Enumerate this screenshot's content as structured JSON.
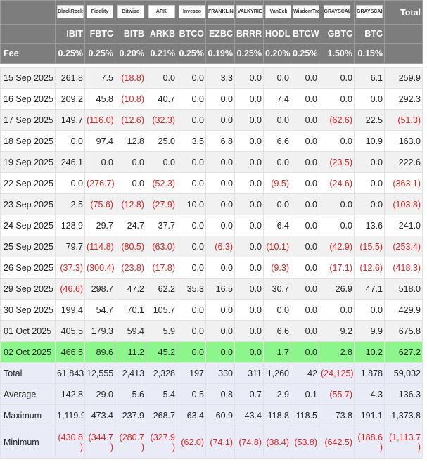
{
  "header": {
    "logos": [
      "BlackRock",
      "Fidelity",
      "Bitwise",
      "ARK",
      "Invesco",
      "FRANKLIN TEMPLETON",
      "VALKYRIE",
      "VanEck",
      "WisdomTree",
      "GRAYSCALE",
      "GRAYSCALE"
    ],
    "total_label": "Total",
    "tickers": [
      "IBIT",
      "FBTC",
      "BITB",
      "ARKB",
      "BTCO",
      "EZBC",
      "BRRR",
      "HODL",
      "BTCW",
      "GBTC",
      "BTC"
    ],
    "fee_label": "Fee",
    "fees": [
      "0.25%",
      "0.25%",
      "0.20%",
      "0.21%",
      "0.25%",
      "0.19%",
      "0.25%",
      "0.20%",
      "0.25%",
      "1.50%",
      "0.15%"
    ]
  },
  "table": {
    "rows": [
      [
        "15 Sep 2025",
        "261.8",
        "7.5",
        "(18.8)",
        "0.0",
        "0.0",
        "3.3",
        "0.0",
        "0.0",
        "0.0",
        "0.0",
        "6.1",
        "259.9"
      ],
      [
        "16 Sep 2025",
        "209.2",
        "45.8",
        "(10.8)",
        "40.7",
        "0.0",
        "0.0",
        "0.0",
        "7.4",
        "0.0",
        "0.0",
        "0.0",
        "292.3"
      ],
      [
        "17 Sep 2025",
        "149.7",
        "(116.0)",
        "(12.6)",
        "(32.3)",
        "0.0",
        "0.0",
        "0.0",
        "0.0",
        "0.0",
        "(62.6)",
        "22.5",
        "(51.3)"
      ],
      [
        "18 Sep 2025",
        "0.0",
        "97.4",
        "12.8",
        "25.0",
        "3.5",
        "6.8",
        "0.0",
        "6.6",
        "0.0",
        "0.0",
        "10.9",
        "163.0"
      ],
      [
        "19 Sep 2025",
        "246.1",
        "0.0",
        "0.0",
        "0.0",
        "0.0",
        "0.0",
        "0.0",
        "0.0",
        "0.0",
        "(23.5)",
        "0.0",
        "222.6"
      ],
      [
        "22 Sep 2025",
        "0.0",
        "(276.7)",
        "0.0",
        "(52.3)",
        "0.0",
        "0.0",
        "0.0",
        "(9.5)",
        "0.0",
        "(24.6)",
        "0.0",
        "(363.1)"
      ],
      [
        "23 Sep 2025",
        "2.5",
        "(75.6)",
        "(12.8)",
        "(27.9)",
        "10.0",
        "0.0",
        "0.0",
        "0.0",
        "0.0",
        "0.0",
        "0.0",
        "(103.8)"
      ],
      [
        "24 Sep 2025",
        "128.9",
        "29.7",
        "24.7",
        "37.7",
        "0.0",
        "0.0",
        "0.0",
        "6.4",
        "0.0",
        "0.0",
        "13.6",
        "241.0"
      ],
      [
        "25 Sep 2025",
        "79.7",
        "(114.8)",
        "(80.5)",
        "(63.0)",
        "0.0",
        "(6.3)",
        "0.0",
        "(10.1)",
        "0.0",
        "(42.9)",
        "(15.5)",
        "(253.4)"
      ],
      [
        "26 Sep 2025",
        "(37.3)",
        "(300.4)",
        "(23.8)",
        "(17.8)",
        "0.0",
        "0.0",
        "0.0",
        "(9.3)",
        "0.0",
        "(17.1)",
        "(12.6)",
        "(418.3)"
      ],
      [
        "29 Sep 2025",
        "(46.6)",
        "298.7",
        "47.2",
        "62.2",
        "35.3",
        "16.5",
        "0.0",
        "30.7",
        "0.0",
        "26.9",
        "47.1",
        "518.0"
      ],
      [
        "30 Sep 2025",
        "199.4",
        "54.7",
        "70.1",
        "105.7",
        "0.0",
        "0.0",
        "0.0",
        "0.0",
        "0.0",
        "0.0",
        "0.0",
        "429.9"
      ],
      [
        "01 Oct 2025",
        "405.5",
        "179.3",
        "59.4",
        "5.9",
        "0.0",
        "0.0",
        "0.0",
        "6.6",
        "0.0",
        "9.2",
        "9.9",
        "675.8"
      ],
      [
        "02 Oct 2025",
        "466.5",
        "89.6",
        "11.2",
        "45.2",
        "0.0",
        "0.0",
        "0.0",
        "1.7",
        "0.0",
        "2.8",
        "10.2",
        "627.2"
      ]
    ],
    "summary": [
      [
        "Total",
        "61,843",
        "12,555",
        "2,413",
        "2,328",
        "197",
        "330",
        "311",
        "1,260",
        "42",
        "(24,125)",
        "1,878",
        "59,032"
      ],
      [
        "Average",
        "142.8",
        "29.0",
        "5.6",
        "5.4",
        "0.5",
        "0.8",
        "0.7",
        "2.9",
        "0.1",
        "(55.7)",
        "4.3",
        "136.3"
      ],
      [
        "Maximum",
        "1,119.9",
        "473.4",
        "237.9",
        "268.7",
        "63.4",
        "60.9",
        "43.4",
        "118.8",
        "118.5",
        "73.8",
        "191.1",
        "1,373.8"
      ],
      [
        "Minimum",
        "(430.8)",
        "(344.7)",
        "(280.7)",
        "(327.9)",
        "(62.0)",
        "(74.1)",
        "(74.8)",
        "(38.4)",
        "(53.8)",
        "(642.5)",
        "(188.6)",
        "(1,113.7)"
      ]
    ]
  }
}
